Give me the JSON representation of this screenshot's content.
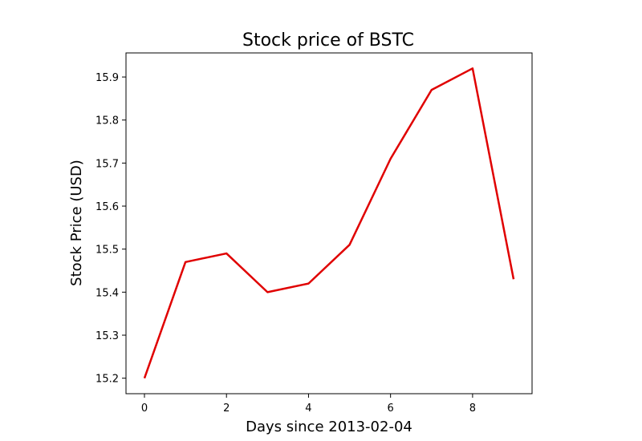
{
  "chart_data": {
    "type": "line",
    "title": "Stock price of BSTC",
    "xlabel": "Days since 2013-02-04",
    "ylabel": "Stock Price (USD)",
    "xlim": [
      -0.45,
      9.45
    ],
    "ylim": [
      15.164,
      15.956
    ],
    "xticks": [
      0,
      2,
      4,
      6,
      8
    ],
    "yticks": [
      15.2,
      15.3,
      15.4,
      15.5,
      15.6,
      15.7,
      15.8,
      15.9
    ],
    "grid": false,
    "legend": "none",
    "series": [
      {
        "color": "#e00000",
        "x": [
          0,
          1,
          2,
          3,
          4,
          5,
          6,
          7,
          8,
          9
        ],
        "values": [
          15.2,
          15.47,
          15.49,
          15.4,
          15.42,
          15.51,
          15.71,
          15.87,
          15.92,
          15.43
        ]
      }
    ]
  }
}
